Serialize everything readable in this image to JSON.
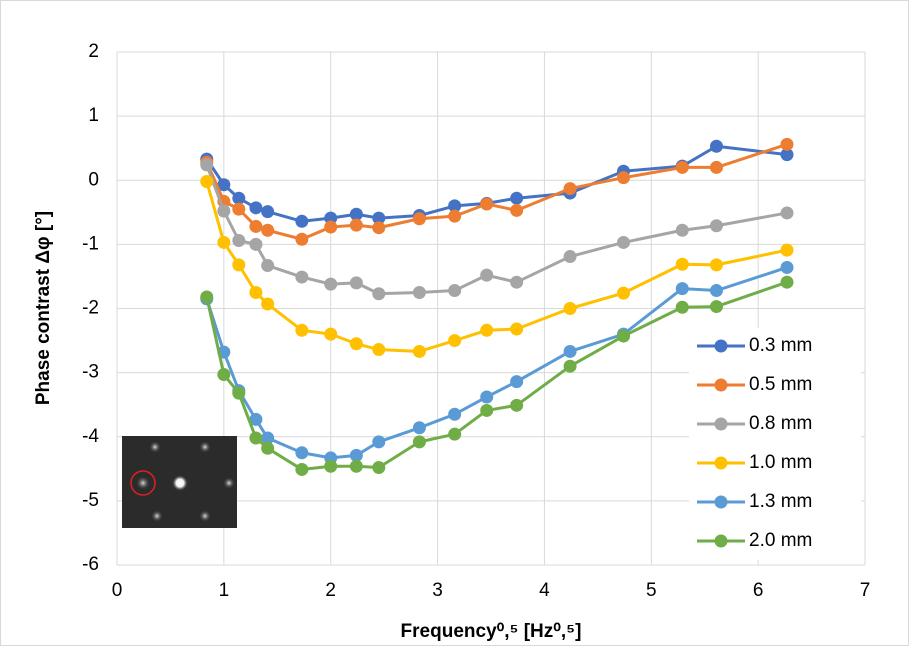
{
  "chart_data": {
    "type": "line",
    "xlabel": "Frequency⁰,⁵ [Hz⁰,⁵]",
    "ylabel": "Phase contrast Δφ [°]",
    "x": [
      0.84,
      1,
      1.14,
      1.3,
      1.41,
      1.73,
      2,
      2.24,
      2.45,
      2.83,
      3.16,
      3.46,
      3.74,
      4.24,
      4.74,
      5.29,
      5.61,
      6.27
    ],
    "series": [
      {
        "name": "0.3 mm",
        "color": "#4472c4",
        "values": [
          0.33,
          -0.07,
          -0.28,
          -0.43,
          -0.49,
          -0.64,
          -0.59,
          -0.53,
          -0.59,
          -0.55,
          -0.4,
          -0.36,
          -0.28,
          -0.2,
          0.14,
          0.22,
          0.53,
          0.4
        ]
      },
      {
        "name": "0.5 mm",
        "color": "#ed7d31",
        "values": [
          0.28,
          -0.33,
          -0.45,
          -0.72,
          -0.78,
          -0.92,
          -0.73,
          -0.7,
          -0.74,
          -0.6,
          -0.56,
          -0.37,
          -0.47,
          -0.13,
          0.04,
          0.2,
          0.2,
          0.56
        ]
      },
      {
        "name": "0.8 mm",
        "color": "#a5a5a5",
        "values": [
          0.24,
          -0.48,
          -0.94,
          -1.0,
          -1.33,
          -1.51,
          -1.62,
          -1.6,
          -1.77,
          -1.75,
          -1.72,
          -1.48,
          -1.59,
          -1.19,
          -0.97,
          -0.78,
          -0.71,
          -0.51
        ]
      },
      {
        "name": "1.0 mm",
        "color": "#ffc000",
        "values": [
          -0.02,
          -0.97,
          -1.32,
          -1.75,
          -1.93,
          -2.34,
          -2.4,
          -2.55,
          -2.64,
          -2.67,
          -2.5,
          -2.34,
          -2.32,
          -2.0,
          -1.76,
          -1.31,
          -1.32,
          -1.09
        ]
      },
      {
        "name": "1.3 mm",
        "color": "#5b9bd5",
        "values": [
          -1.85,
          -2.68,
          -3.28,
          -3.73,
          -4.02,
          -4.25,
          -4.33,
          -4.29,
          -4.08,
          -3.86,
          -3.65,
          -3.38,
          -3.14,
          -2.67,
          -2.4,
          -1.69,
          -1.72,
          -1.36
        ]
      },
      {
        "name": "2.0 mm",
        "color": "#70ad47",
        "values": [
          -1.82,
          -3.03,
          -3.32,
          -4.02,
          -4.18,
          -4.51,
          -4.46,
          -4.46,
          -4.48,
          -4.08,
          -3.96,
          -3.59,
          -3.51,
          -2.9,
          -2.43,
          -1.98,
          -1.97,
          -1.59
        ]
      }
    ],
    "xlim": [
      0,
      7
    ],
    "xticks": [
      0,
      1,
      2,
      3,
      4,
      5,
      6,
      7
    ],
    "ylim": [
      -6,
      2
    ],
    "yticks": [
      -6,
      -5,
      -4,
      -3,
      -2,
      -1,
      0,
      1,
      2
    ],
    "grid": true,
    "legend": "right"
  }
}
